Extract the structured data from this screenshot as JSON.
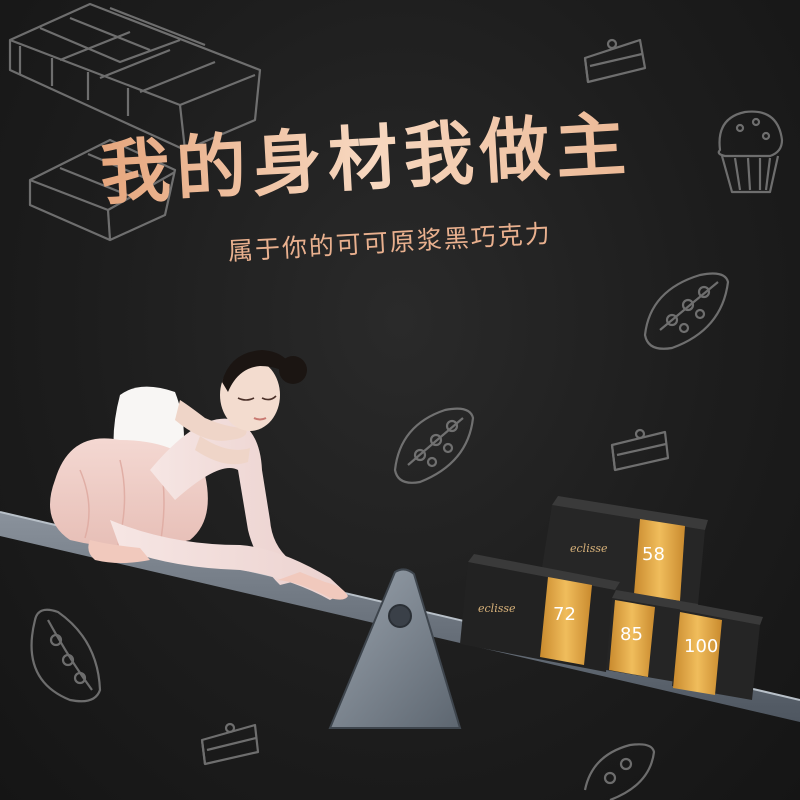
{
  "headline": "我的身材我做主",
  "subline": "属于你的可可原浆黑巧克力",
  "products": [
    {
      "percent": "58",
      "brand": "eclisse"
    },
    {
      "percent": "72",
      "brand": "eclisse"
    },
    {
      "percent": "85",
      "brand": ""
    },
    {
      "percent": "100",
      "brand": ""
    }
  ],
  "colors": {
    "background": "#1c1c1c",
    "headline": "#f2c7a6",
    "accent_gold": "#e0a43c",
    "seesaw": "#6b7480"
  },
  "icons": [
    "chocolate-bar-icon",
    "cake-slice-icon",
    "cupcake-icon",
    "cocoa-pod-icon"
  ]
}
